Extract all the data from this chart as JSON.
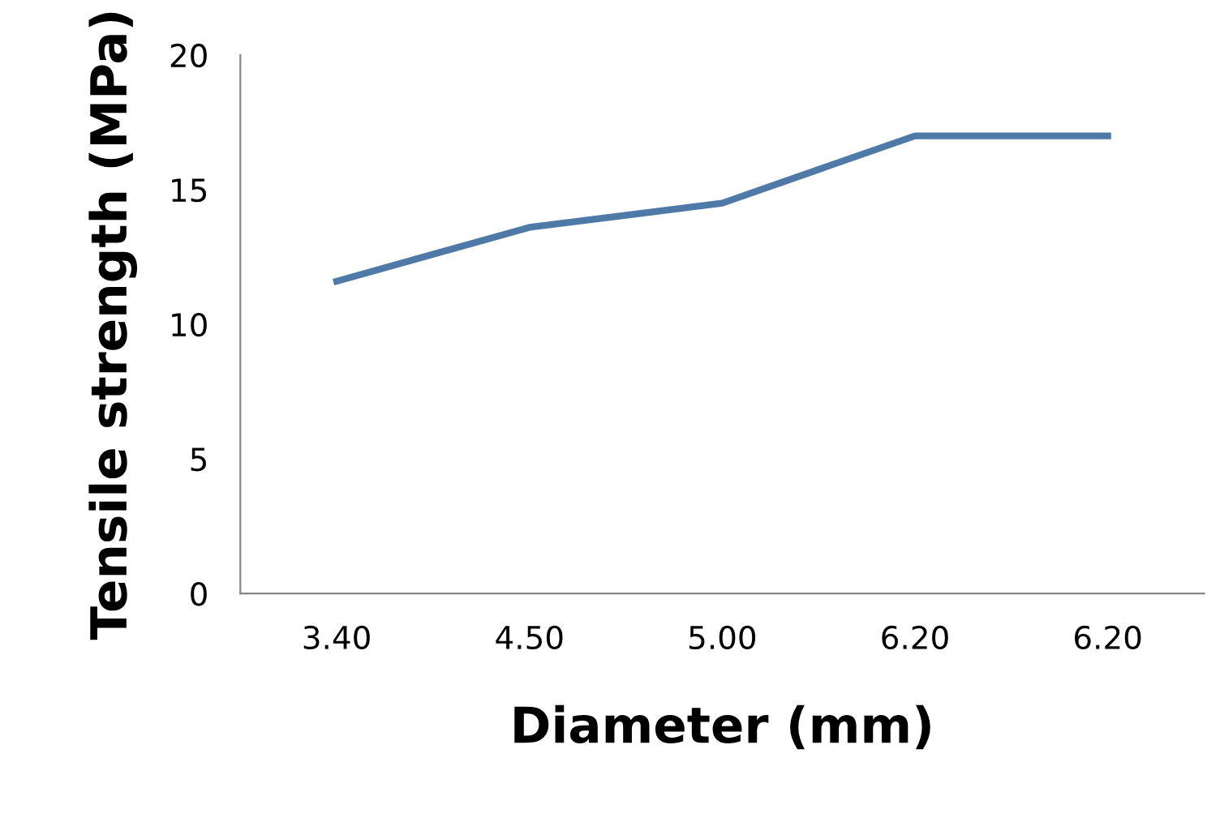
{
  "chart_data": {
    "type": "line",
    "xlabel": "Diameter (mm)",
    "ylabel": "Tensile strength (MPa)",
    "categories": [
      "3.40",
      "4.50",
      "5.00",
      "6.20",
      "6.20"
    ],
    "series": [
      {
        "color": "#4f7aa8",
        "values": [
          11.6,
          13.6,
          14.5,
          17.0,
          17.0
        ]
      }
    ],
    "ylim": [
      0,
      20
    ],
    "yticks": [
      0,
      5,
      10,
      15,
      20
    ],
    "grid": false,
    "legend": false,
    "marker": "none",
    "line_style": "solid"
  }
}
